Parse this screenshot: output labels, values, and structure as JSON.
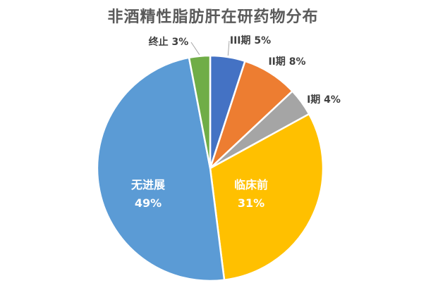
{
  "chart_data": {
    "type": "pie",
    "title": "非酒精性脂肪肝在研药物分布",
    "start_angle_deg": 0,
    "direction": "clockwise",
    "slices": [
      {
        "key": "phase3",
        "name": "III期",
        "pct_label": "5%",
        "value": 5,
        "color": "#4472C4",
        "label_pos": "outside"
      },
      {
        "key": "phase2",
        "name": "II期",
        "pct_label": "8%",
        "value": 8,
        "color": "#ED7D31",
        "label_pos": "outside"
      },
      {
        "key": "phase1",
        "name": "I期",
        "pct_label": "4%",
        "value": 4,
        "color": "#A5A5A5",
        "label_pos": "outside"
      },
      {
        "key": "preclinical",
        "name": "临床前",
        "pct_label": "31%",
        "value": 31,
        "color": "#FFC000",
        "label_pos": "inside"
      },
      {
        "key": "no_progress",
        "name": "无进展",
        "pct_label": "49%",
        "value": 49,
        "color": "#5B9BD5",
        "label_pos": "inside"
      },
      {
        "key": "terminated",
        "name": "终止",
        "pct_label": "3%",
        "value": 3,
        "color": "#70AD47",
        "label_pos": "outside"
      }
    ]
  }
}
